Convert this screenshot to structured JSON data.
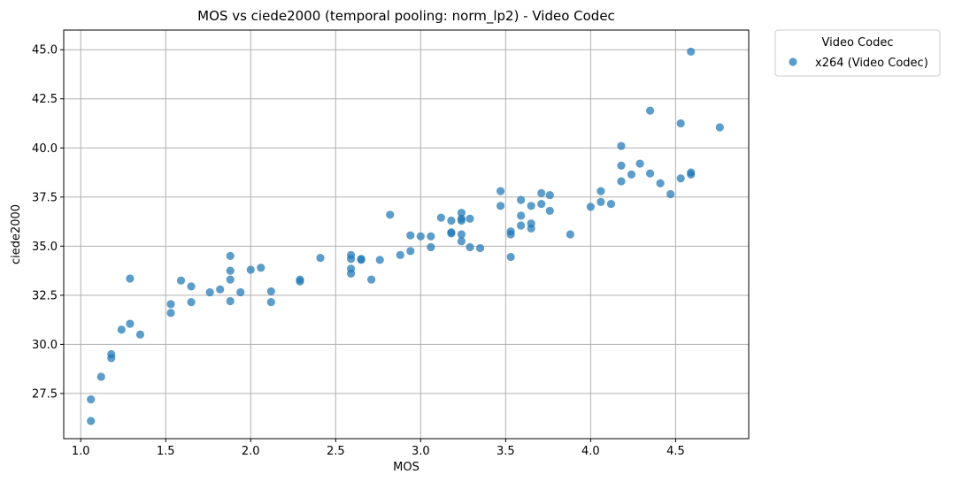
{
  "chart_data": {
    "type": "scatter",
    "title": "MOS vs ciede2000 (temporal pooling: norm_lp2) - Video Codec",
    "xlabel": "MOS",
    "ylabel": "ciede2000",
    "xlim": [
      0.9,
      4.93
    ],
    "ylim": [
      25.2,
      46.0
    ],
    "xticks": [
      1.0,
      1.5,
      2.0,
      2.5,
      3.0,
      3.5,
      4.0,
      4.5
    ],
    "xtick_labels": [
      "1.0",
      "1.5",
      "2.0",
      "2.5",
      "3.0",
      "3.5",
      "4.0",
      "4.5"
    ],
    "yticks": [
      27.5,
      30.0,
      32.5,
      35.0,
      37.5,
      40.0,
      42.5,
      45.0
    ],
    "ytick_labels": [
      "27.5",
      "30.0",
      "32.5",
      "35.0",
      "37.5",
      "40.0",
      "42.5",
      "45.0"
    ],
    "grid": true,
    "legend": {
      "title": "Video Codec",
      "placement": "outside-top-right"
    },
    "series": [
      {
        "name": "x264 (Video Codec)",
        "color": "#1f77b4",
        "points": [
          [
            1.06,
            27.2
          ],
          [
            1.06,
            26.1
          ],
          [
            1.12,
            28.35
          ],
          [
            1.18,
            29.5
          ],
          [
            1.18,
            29.3
          ],
          [
            1.24,
            30.75
          ],
          [
            1.29,
            31.05
          ],
          [
            1.35,
            30.5
          ],
          [
            1.29,
            33.35
          ],
          [
            1.53,
            32.05
          ],
          [
            1.53,
            31.6
          ],
          [
            1.59,
            33.25
          ],
          [
            1.65,
            32.95
          ],
          [
            1.65,
            32.15
          ],
          [
            1.76,
            32.65
          ],
          [
            1.82,
            32.8
          ],
          [
            1.88,
            34.5
          ],
          [
            1.88,
            33.75
          ],
          [
            1.88,
            33.3
          ],
          [
            1.88,
            32.2
          ],
          [
            1.94,
            32.65
          ],
          [
            2.0,
            33.8
          ],
          [
            2.06,
            33.9
          ],
          [
            2.12,
            32.7
          ],
          [
            2.12,
            32.15
          ],
          [
            2.29,
            33.3
          ],
          [
            2.29,
            33.2
          ],
          [
            2.41,
            34.4
          ],
          [
            2.59,
            34.55
          ],
          [
            2.59,
            34.35
          ],
          [
            2.59,
            33.85
          ],
          [
            2.59,
            33.6
          ],
          [
            2.65,
            34.35
          ],
          [
            2.65,
            34.3
          ],
          [
            2.71,
            33.3
          ],
          [
            2.76,
            34.3
          ],
          [
            2.82,
            36.6
          ],
          [
            2.88,
            34.55
          ],
          [
            2.94,
            35.55
          ],
          [
            2.94,
            34.75
          ],
          [
            3.0,
            35.5
          ],
          [
            3.06,
            35.5
          ],
          [
            3.06,
            34.95
          ],
          [
            3.12,
            36.45
          ],
          [
            3.18,
            36.3
          ],
          [
            3.18,
            35.7
          ],
          [
            3.18,
            35.65
          ],
          [
            3.24,
            36.7
          ],
          [
            3.24,
            36.4
          ],
          [
            3.24,
            36.3
          ],
          [
            3.24,
            35.6
          ],
          [
            3.24,
            35.25
          ],
          [
            3.29,
            36.4
          ],
          [
            3.29,
            34.95
          ],
          [
            3.35,
            34.9
          ],
          [
            3.47,
            37.8
          ],
          [
            3.47,
            37.05
          ],
          [
            3.53,
            35.75
          ],
          [
            3.53,
            35.6
          ],
          [
            3.53,
            34.45
          ],
          [
            3.59,
            37.35
          ],
          [
            3.59,
            36.55
          ],
          [
            3.59,
            36.05
          ],
          [
            3.65,
            37.05
          ],
          [
            3.65,
            36.15
          ],
          [
            3.65,
            35.9
          ],
          [
            3.71,
            37.7
          ],
          [
            3.71,
            37.15
          ],
          [
            3.76,
            37.6
          ],
          [
            3.76,
            36.8
          ],
          [
            3.88,
            35.6
          ],
          [
            4.0,
            37.0
          ],
          [
            4.06,
            37.8
          ],
          [
            4.06,
            37.25
          ],
          [
            4.12,
            37.15
          ],
          [
            4.18,
            40.1
          ],
          [
            4.18,
            39.1
          ],
          [
            4.18,
            38.3
          ],
          [
            4.24,
            38.65
          ],
          [
            4.29,
            39.2
          ],
          [
            4.35,
            41.9
          ],
          [
            4.35,
            38.7
          ],
          [
            4.41,
            38.2
          ],
          [
            4.47,
            37.65
          ],
          [
            4.53,
            41.25
          ],
          [
            4.53,
            38.45
          ],
          [
            4.59,
            44.9
          ],
          [
            4.59,
            38.75
          ],
          [
            4.59,
            38.65
          ],
          [
            4.76,
            41.05
          ]
        ]
      }
    ]
  }
}
